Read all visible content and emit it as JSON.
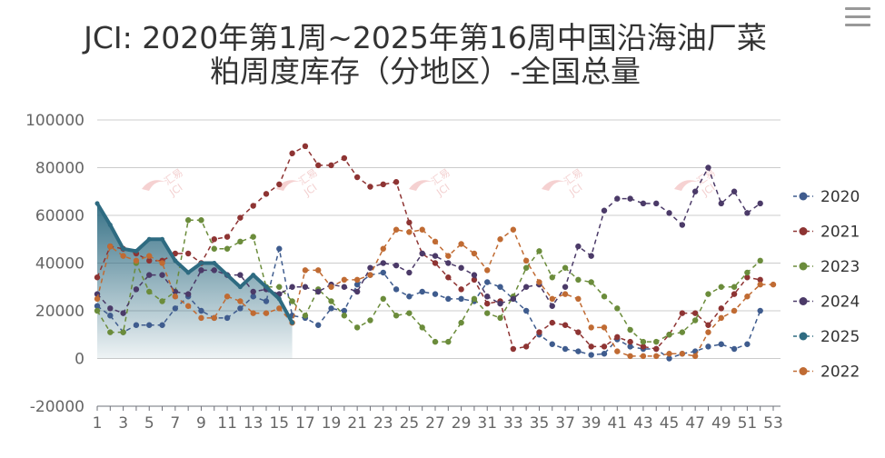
{
  "menu_icon": "hamburger-menu-icon",
  "chart_data": {
    "type": "line",
    "title_lines": [
      "JCI: 2020年第1周~2025年第16周中国沿海油厂菜",
      "粕周度库存（分地区）-全国总量"
    ],
    "watermark": [
      "汇易",
      "JCI"
    ],
    "x": [
      1,
      2,
      3,
      4,
      5,
      6,
      7,
      8,
      9,
      10,
      11,
      12,
      13,
      14,
      15,
      16,
      17,
      18,
      19,
      20,
      21,
      22,
      23,
      24,
      25,
      26,
      27,
      28,
      29,
      30,
      31,
      32,
      33,
      34,
      35,
      36,
      37,
      38,
      39,
      40,
      41,
      42,
      43,
      44,
      45,
      46,
      47,
      48,
      49,
      50,
      51,
      52,
      53
    ],
    "x_tick_labels": [
      "1",
      "3",
      "5",
      "7",
      "9",
      "11",
      "13",
      "15",
      "17",
      "19",
      "21",
      "23",
      "25",
      "27",
      "29",
      "31",
      "33",
      "35",
      "37",
      "39",
      "41",
      "43",
      "45",
      "47",
      "49",
      "51",
      "53"
    ],
    "ylim": [
      -20000,
      100000
    ],
    "y_ticks": [
      "100000",
      "80000",
      "60000",
      "40000",
      "20000",
      "0",
      "-20000"
    ],
    "grid": true,
    "legend_position": "right",
    "series": [
      {
        "name": "2020",
        "color": "#3f5c8e",
        "values": [
          22000,
          18000,
          11000,
          14000,
          14000,
          14000,
          21000,
          26000,
          20000,
          17000,
          17000,
          21000,
          26000,
          24000,
          46000,
          18000,
          17000,
          14000,
          21000,
          20000,
          31000,
          35000,
          36000,
          29000,
          26000,
          28000,
          27000,
          25000,
          25000,
          24000,
          32000,
          30000,
          25000,
          20000,
          10000,
          6000,
          4000,
          3000,
          1500,
          2000,
          8000,
          5000,
          4000,
          4000,
          0,
          2000,
          3000,
          5000,
          6000,
          4000,
          6000,
          20000,
          null
        ]
      },
      {
        "name": "2021",
        "color": "#8e3433",
        "values": [
          34000,
          47000,
          46000,
          44000,
          41000,
          41000,
          44000,
          44000,
          40000,
          50000,
          51000,
          59000,
          64000,
          69000,
          73000,
          86000,
          89000,
          81000,
          81000,
          84000,
          76000,
          72000,
          73000,
          74000,
          57000,
          44000,
          40000,
          34000,
          29000,
          33000,
          23000,
          24000,
          4000,
          5000,
          11000,
          15000,
          14000,
          11000,
          5000,
          5000,
          9000,
          7000,
          5000,
          4000,
          10000,
          19000,
          19000,
          14000,
          21000,
          27000,
          34000,
          33000,
          null
        ]
      },
      {
        "name": "2023",
        "color": "#6b8c3b",
        "values": [
          20000,
          11000,
          11000,
          40000,
          28000,
          24000,
          28000,
          58000,
          58000,
          46000,
          46000,
          49000,
          51000,
          30000,
          30000,
          24000,
          18000,
          29000,
          24000,
          18000,
          13000,
          16000,
          25000,
          18000,
          19000,
          13000,
          7000,
          7000,
          15000,
          25000,
          19000,
          17000,
          26000,
          38000,
          45000,
          34000,
          38000,
          33000,
          32000,
          26000,
          21000,
          12000,
          7000,
          7000,
          10000,
          11000,
          16000,
          27000,
          30000,
          30000,
          36000,
          41000,
          null
        ]
      },
      {
        "name": "2024",
        "color": "#4b3a68",
        "values": [
          27000,
          21000,
          19000,
          29000,
          35000,
          35000,
          28000,
          27000,
          37000,
          37000,
          35000,
          35000,
          28000,
          29000,
          27000,
          30000,
          30000,
          28000,
          31000,
          30000,
          28000,
          38000,
          40000,
          39000,
          36000,
          44000,
          43000,
          40000,
          38000,
          35000,
          26000,
          23000,
          25000,
          30000,
          31000,
          22000,
          30000,
          47000,
          43000,
          62000,
          67000,
          67000,
          65000,
          65000,
          61000,
          56000,
          70000,
          80000,
          65000,
          70000,
          61000,
          65000,
          null
        ]
      },
      {
        "name": "2025",
        "color": "#2e6b81",
        "values": [
          65000,
          56000,
          46000,
          45000,
          50000,
          50000,
          41000,
          36000,
          40000,
          40000,
          35000,
          30000,
          35000,
          30000,
          25000,
          15000,
          null,
          null,
          null,
          null,
          null,
          null,
          null,
          null,
          null,
          null,
          null,
          null,
          null,
          null,
          null,
          null,
          null,
          null,
          null,
          null,
          null,
          null,
          null,
          null,
          null,
          null,
          null,
          null,
          null,
          null,
          null,
          null,
          null,
          null,
          null,
          null,
          null
        ]
      },
      {
        "name": "2022",
        "color": "#c06b33",
        "values": [
          25000,
          47000,
          43000,
          41000,
          43000,
          40000,
          26000,
          22000,
          17000,
          17000,
          26000,
          24000,
          19000,
          19000,
          21000,
          15000,
          37000,
          37000,
          30000,
          33000,
          33000,
          35000,
          46000,
          54000,
          53000,
          54000,
          49000,
          43000,
          48000,
          44000,
          37000,
          50000,
          54000,
          41000,
          32000,
          25000,
          27000,
          25000,
          13000,
          13000,
          3000,
          1000,
          1000,
          1000,
          2000,
          2000,
          1000,
          11000,
          17000,
          20000,
          26000,
          31000,
          31000
        ]
      }
    ],
    "legend_order": [
      "2020",
      "2021",
      "2023",
      "2024",
      "2025",
      "2022"
    ]
  }
}
